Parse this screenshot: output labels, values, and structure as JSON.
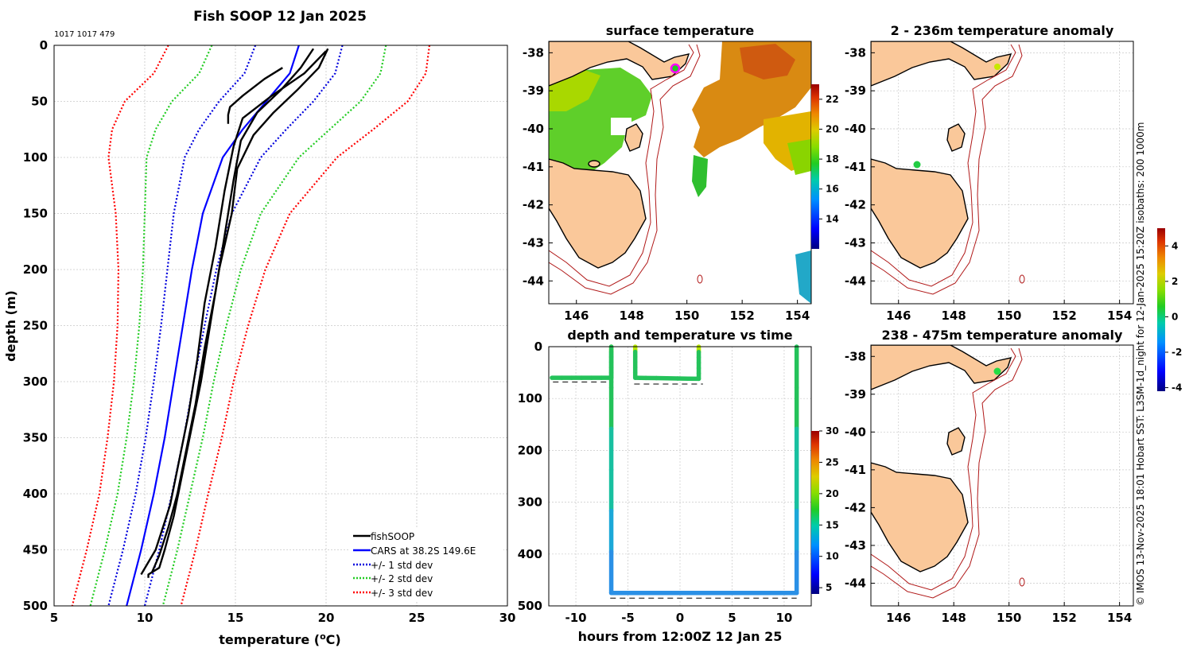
{
  "colors": {
    "land": "#fac89a",
    "coast": "#000000",
    "isobath": "#b01818",
    "grid": "#c8c8c8",
    "profile": "#000000",
    "cars": "#0000ff",
    "std1": "#0000dd",
    "std2": "#22cc22",
    "std3": "#ff0000"
  },
  "chart_data": [
    {
      "id": "profile",
      "type": "line",
      "title": "Fish SOOP 12 Jan 2025",
      "subtitle": "1017 1017 479",
      "xlabel": "temperature (",
      "xlabel_sup": "o",
      "xlabel_end": "C)",
      "ylabel": "depth (m)",
      "xlim": [
        5,
        30
      ],
      "ylim": [
        0,
        500
      ],
      "y_reversed": true,
      "x_ticks": [
        "5",
        "10",
        "15",
        "20",
        "25",
        "30"
      ],
      "y_ticks": [
        "0",
        "50",
        "100",
        "150",
        "200",
        "250",
        "300",
        "350",
        "400",
        "450",
        "500"
      ],
      "legend": {
        "placement": "bottom-right",
        "items": [
          {
            "label": "fishSOOP",
            "style": "solid",
            "color": "#000000"
          },
          {
            "label": "CARS at 38.2S 149.6E",
            "style": "solid",
            "color": "#0000ff"
          },
          {
            "label": "+/- 1 std dev",
            "style": "dotted",
            "color": "#0000dd"
          },
          {
            "label": "+/- 2 std dev",
            "style": "dotted",
            "color": "#22cc22"
          },
          {
            "label": "+/- 3 std dev",
            "style": "dotted",
            "color": "#ff0000"
          }
        ]
      },
      "cars": {
        "depth": [
          0,
          25,
          50,
          75,
          100,
          150,
          200,
          250,
          300,
          350,
          400,
          450,
          500
        ],
        "mean": [
          18.5,
          18.0,
          16.7,
          15.4,
          14.3,
          13.2,
          12.6,
          12.1,
          11.6,
          11.1,
          10.5,
          9.8,
          9.0
        ],
        "std": [
          2.4,
          2.5,
          2.6,
          2.4,
          2.1,
          1.6,
          1.35,
          1.2,
          1.1,
          1.05,
          1.0,
          1.0,
          1.0
        ]
      },
      "series": [
        {
          "name": "fishSOOP cast 1",
          "temp": [
            20.1,
            19.6,
            18.4,
            17.1,
            16.0,
            15.1,
            14.8,
            14.1,
            13.6,
            13.1,
            12.6,
            12.1,
            11.6,
            11.1,
            10.8,
            10.2,
            10.2
          ],
          "depth": [
            3,
            20,
            40,
            60,
            80,
            110,
            150,
            200,
            250,
            300,
            340,
            380,
            420,
            450,
            466,
            472,
            475
          ]
        },
        {
          "name": "fishSOOP cast 2",
          "temp": [
            19.3,
            18.6,
            17.5,
            16.2,
            15.3,
            14.9,
            14.4,
            13.9,
            13.3,
            12.8,
            12.3,
            11.8,
            11.3,
            10.8,
            10.4
          ],
          "depth": [
            3,
            20,
            40,
            60,
            85,
            120,
            170,
            220,
            270,
            320,
            360,
            400,
            430,
            455,
            470
          ]
        },
        {
          "name": "fishSOOP cast 3",
          "temp": [
            17.6,
            16.6,
            15.4,
            14.7,
            14.6,
            14.6
          ],
          "depth": [
            20,
            30,
            45,
            55,
            62,
            70
          ]
        },
        {
          "name": "fishSOOP cast 4",
          "temp": [
            20.0,
            18.8,
            17.0,
            15.4,
            14.9,
            14.4,
            13.9,
            13.3,
            12.9,
            12.4,
            11.9,
            11.4,
            10.6,
            9.8
          ],
          "depth": [
            5,
            25,
            45,
            65,
            90,
            130,
            180,
            230,
            280,
            330,
            370,
            410,
            450,
            472
          ]
        }
      ]
    },
    {
      "id": "surface",
      "type": "heatmap",
      "title": "surface temperature",
      "x_ticks": [
        "146",
        "148",
        "150",
        "152",
        "154"
      ],
      "y_ticks": [
        "-38",
        "-39",
        "-40",
        "-41",
        "-42",
        "-43",
        "-44"
      ],
      "xlim": [
        145.0,
        154.5
      ],
      "ylim": [
        -44.6,
        -37.7
      ],
      "colorbar": {
        "min": 12,
        "max": 23,
        "ticks": [
          "14",
          "16",
          "18",
          "20",
          "22"
        ]
      },
      "position_marker": {
        "lon": 149.6,
        "lat": -38.2
      }
    },
    {
      "id": "timeseries",
      "type": "scatter",
      "title": "depth and temperature vs time",
      "xlabel": "hours from 12:00Z 12 Jan 25",
      "x_ticks": [
        "-10",
        "-5",
        "0",
        "5",
        "10"
      ],
      "y_ticks": [
        "0",
        "100",
        "200",
        "300",
        "400",
        "500"
      ],
      "xlim": [
        -12.6,
        12.6
      ],
      "ylim": [
        0,
        500
      ],
      "colorbar": {
        "min": 4,
        "max": 30,
        "ticks": [
          "5",
          "10",
          "15",
          "20",
          "25",
          "30"
        ]
      },
      "segments": [
        {
          "t": [
            -12.3,
            -6.6
          ],
          "depth": [
            60,
            60
          ]
        },
        {
          "t": [
            -6.6,
            -6.6
          ],
          "depth": [
            0,
            60
          ]
        },
        {
          "t": [
            -6.6,
            -6.6
          ],
          "depth": [
            0,
            475
          ]
        },
        {
          "t": [
            -6.6,
            11.2
          ],
          "depth": [
            475,
            475
          ]
        },
        {
          "t": [
            -4.3,
            -4.3
          ],
          "depth": [
            0,
            60
          ]
        },
        {
          "t": [
            -4.3,
            1.8
          ],
          "depth": [
            60,
            62
          ]
        },
        {
          "t": [
            1.8,
            1.8
          ],
          "depth": [
            0,
            62
          ]
        },
        {
          "t": [
            11.2,
            11.2
          ],
          "depth": [
            0,
            475
          ]
        }
      ],
      "dashed_refs": [
        {
          "t": [
            -12.2,
            -6.4
          ],
          "depth": 68
        },
        {
          "t": [
            -4.4,
            2.2
          ],
          "depth": 72
        },
        {
          "t": [
            -6.7,
            11.2
          ],
          "depth": 485
        }
      ]
    },
    {
      "id": "anom_upper",
      "type": "heatmap",
      "title": "2 - 236m temperature anomaly",
      "x_ticks": [
        "146",
        "148",
        "150",
        "152",
        "154"
      ],
      "y_ticks": [
        "-38",
        "-39",
        "-40",
        "-41",
        "-42",
        "-43",
        "-44"
      ],
      "xlim": [
        145.0,
        154.5
      ],
      "ylim": [
        -44.6,
        -37.7
      ],
      "markers": [
        {
          "lon": 149.6,
          "lat": -38.2,
          "value": 2.6
        },
        {
          "lon": 146.7,
          "lat": -40.8,
          "value": 0.8
        }
      ]
    },
    {
      "id": "anom_lower",
      "type": "heatmap",
      "title": "238 - 475m temperature anomaly",
      "x_ticks": [
        "146",
        "148",
        "150",
        "152",
        "154"
      ],
      "y_ticks": [
        "-38",
        "-39",
        "-40",
        "-41",
        "-42",
        "-43",
        "-44"
      ],
      "xlim": [
        145.0,
        154.5
      ],
      "ylim": [
        -44.6,
        -37.7
      ],
      "markers": [
        {
          "lon": 149.6,
          "lat": -38.2,
          "value": 0.9
        }
      ]
    },
    {
      "id": "anom_colorbar",
      "type": "colorbar",
      "min": -4.2,
      "max": 5.0,
      "ticks": [
        "4",
        "2",
        "0",
        "-2",
        "-4"
      ]
    }
  ],
  "side_text": "© IMOS 13-Nov-2025 18:01 Hobart SST: L3SM-1d_night for 12-Jan-2025 15:20Z isobaths: 200 1000m"
}
